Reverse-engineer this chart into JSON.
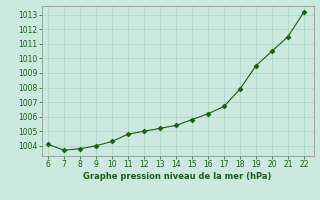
{
  "x": [
    6,
    7,
    8,
    9,
    10,
    11,
    12,
    13,
    14,
    15,
    16,
    17,
    18,
    19,
    20,
    21,
    22
  ],
  "y": [
    1004.1,
    1003.7,
    1003.8,
    1004.0,
    1004.3,
    1004.8,
    1005.0,
    1005.2,
    1005.4,
    1005.8,
    1006.2,
    1006.7,
    1007.9,
    1009.5,
    1010.5,
    1011.5,
    1013.2
  ],
  "xlim": [
    5.6,
    22.6
  ],
  "ylim": [
    1003.3,
    1013.6
  ],
  "xticks": [
    6,
    7,
    8,
    9,
    10,
    11,
    12,
    13,
    14,
    15,
    16,
    17,
    18,
    19,
    20,
    21,
    22
  ],
  "yticks": [
    1004,
    1005,
    1006,
    1007,
    1008,
    1009,
    1010,
    1011,
    1012,
    1013
  ],
  "line_color": "#1a5c1a",
  "marker_color": "#1a5c1a",
  "bg_color": "#cce9df",
  "grid_color": "#aad4c4",
  "xlabel": "Graphe pression niveau de la mer (hPa)",
  "xlabel_color": "#1a5c1a",
  "tick_color": "#1a5c1a",
  "axis_color": "#888888"
}
